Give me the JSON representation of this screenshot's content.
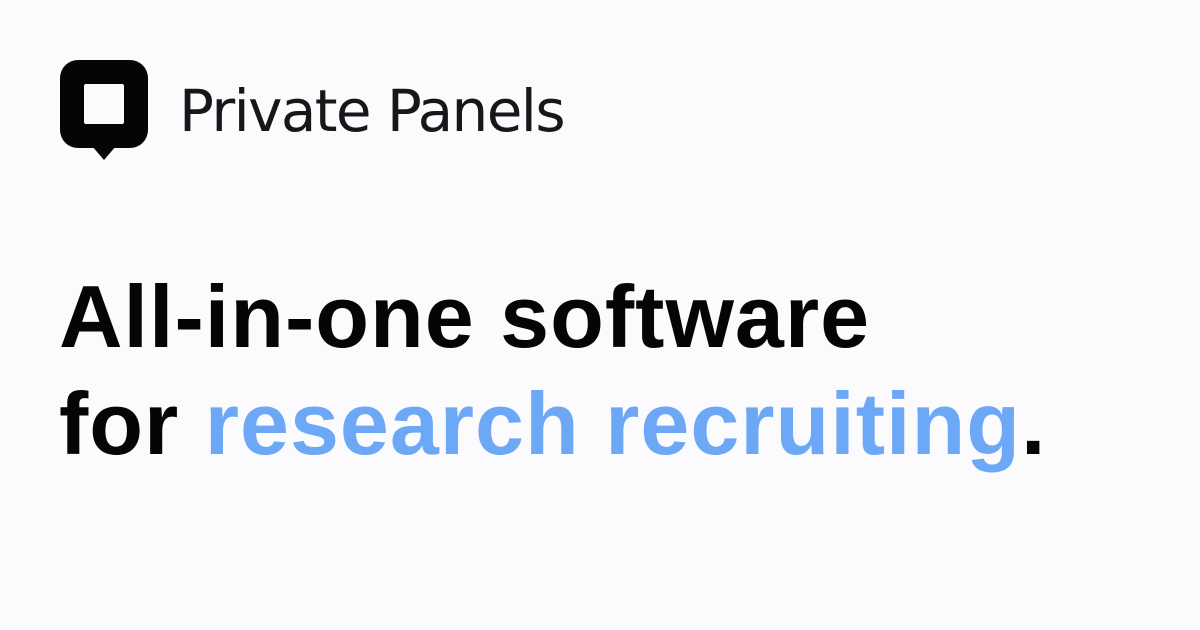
{
  "brand": {
    "name": "Private Panels",
    "logo_icon": "speech-bubble-icon"
  },
  "headline": {
    "line1": "All-in-one software",
    "line2_prefix": "for ",
    "line2_highlight": "research recruiting",
    "line2_suffix": "."
  },
  "colors": {
    "background": "#fbfafd",
    "text": "#050505",
    "accent": "#6ca8f5"
  }
}
